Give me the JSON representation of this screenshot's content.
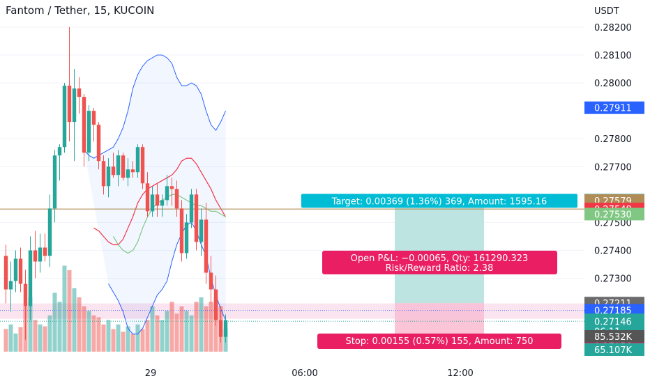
{
  "title": "Fantom / Tether, 15, KUCOIN",
  "currency": "USDT",
  "colors": {
    "up": "#26a69a",
    "down": "#ef5350",
    "bb_upper": "#2962ff",
    "bb_lower": "#2962ff",
    "bb_basis": "#ff6d00",
    "ma_red": "#f23645",
    "ma_green": "#81c784",
    "target_zone": "#b2dfdb",
    "stop_zone": "#f8bbd0",
    "target_label": "#00bcd4",
    "pnl_label": "#e91e63",
    "stop_label": "#e91e63",
    "hline": "#b08d57",
    "dotted": "#2962ff"
  },
  "time_axis": [
    "29",
    "06:00",
    "12:00"
  ],
  "chart_data": {
    "type": "candlestick",
    "ylim": [
      0.27012,
      0.28297
    ],
    "y_ticks": [
      "0.28200",
      "0.28100",
      "0.28000",
      "0.27800",
      "0.27700",
      "0.27500",
      "0.27400",
      "0.27300"
    ],
    "y_tick_values": [
      0.282,
      0.281,
      0.28,
      0.278,
      0.277,
      0.275,
      0.274,
      0.273
    ],
    "candles": [
      [
        0.2738,
        0.2742,
        0.2721,
        0.2726
      ],
      [
        0.2726,
        0.2736,
        0.2718,
        0.2729
      ],
      [
        0.2729,
        0.274,
        0.2725,
        0.2737
      ],
      [
        0.2737,
        0.2741,
        0.2725,
        0.2728
      ],
      [
        0.2728,
        0.2733,
        0.2708,
        0.272
      ],
      [
        0.272,
        0.2745,
        0.2715,
        0.274
      ],
      [
        0.274,
        0.2747,
        0.273,
        0.2736
      ],
      [
        0.2736,
        0.2746,
        0.2732,
        0.2741
      ],
      [
        0.2741,
        0.2746,
        0.2736,
        0.2738
      ],
      [
        0.2738,
        0.276,
        0.2734,
        0.2755
      ],
      [
        0.2755,
        0.2776,
        0.275,
        0.2774
      ],
      [
        0.2774,
        0.2778,
        0.2765,
        0.2777
      ],
      [
        0.2777,
        0.28,
        0.2775,
        0.2799
      ],
      [
        0.2799,
        0.282,
        0.2779,
        0.2786
      ],
      [
        0.2786,
        0.2805,
        0.2772,
        0.2798
      ],
      [
        0.2798,
        0.2802,
        0.2789,
        0.2795
      ],
      [
        0.2795,
        0.2796,
        0.277,
        0.2775
      ],
      [
        0.2775,
        0.2792,
        0.2772,
        0.279
      ],
      [
        0.279,
        0.2791,
        0.2779,
        0.2785
      ],
      [
        0.2785,
        0.2786,
        0.2769,
        0.2772
      ],
      [
        0.2772,
        0.2774,
        0.276,
        0.2763
      ],
      [
        0.2763,
        0.2773,
        0.2759,
        0.277
      ],
      [
        0.277,
        0.2775,
        0.2766,
        0.2767
      ],
      [
        0.2767,
        0.2776,
        0.2763,
        0.2774
      ],
      [
        0.2774,
        0.2775,
        0.2765,
        0.2766
      ],
      [
        0.2766,
        0.2773,
        0.2763,
        0.2769
      ],
      [
        0.2769,
        0.2772,
        0.2766,
        0.2768
      ],
      [
        0.2768,
        0.2778,
        0.2766,
        0.2777
      ],
      [
        0.2777,
        0.2778,
        0.2762,
        0.2764
      ],
      [
        0.2764,
        0.2768,
        0.2752,
        0.2754
      ],
      [
        0.2754,
        0.2763,
        0.2752,
        0.276
      ],
      [
        0.276,
        0.2764,
        0.2752,
        0.2756
      ],
      [
        0.2756,
        0.276,
        0.2752,
        0.2758
      ],
      [
        0.2758,
        0.2767,
        0.2756,
        0.2763
      ],
      [
        0.2763,
        0.2766,
        0.2756,
        0.2762
      ],
      [
        0.2762,
        0.2765,
        0.2752,
        0.2755
      ],
      [
        0.2755,
        0.2758,
        0.2736,
        0.2739
      ],
      [
        0.2739,
        0.2753,
        0.2737,
        0.275
      ],
      [
        0.275,
        0.2762,
        0.2748,
        0.276
      ],
      [
        0.276,
        0.2762,
        0.274,
        0.2743
      ],
      [
        0.2743,
        0.2755,
        0.2738,
        0.2751
      ],
      [
        0.2751,
        0.2757,
        0.2728,
        0.2732
      ],
      [
        0.2732,
        0.2738,
        0.2721,
        0.2726
      ],
      [
        0.2726,
        0.2731,
        0.2713,
        0.2715
      ],
      [
        0.2715,
        0.272,
        0.2707,
        0.2709
      ],
      [
        0.2709,
        0.2717,
        0.2707,
        0.2715
      ]
    ],
    "volume": [
      0.25,
      0.3,
      0.2,
      0.27,
      0.5,
      0.6,
      0.35,
      0.3,
      0.28,
      0.4,
      0.65,
      0.55,
      0.95,
      0.9,
      0.7,
      0.6,
      0.5,
      0.45,
      0.4,
      0.38,
      0.3,
      0.35,
      0.25,
      0.3,
      0.22,
      0.28,
      0.2,
      0.3,
      0.25,
      0.35,
      0.5,
      0.4,
      0.35,
      0.45,
      0.55,
      0.42,
      0.5,
      0.45,
      0.4,
      0.55,
      0.6,
      0.5,
      0.55,
      0.6,
      0.5,
      0.25
    ],
    "bb_upper": [
      0.2776,
      0.2774,
      0.2773,
      0.2774,
      0.2775,
      0.2776,
      0.2777,
      0.278,
      0.2784,
      0.279,
      0.2798,
      0.2803,
      0.2806,
      0.2808,
      0.2809,
      0.281,
      0.281,
      0.2809,
      0.2807,
      0.2802,
      0.2799,
      0.2799,
      0.28,
      0.2799,
      0.2796,
      0.279,
      0.2785,
      0.2783,
      0.2786,
      0.279
    ],
    "bb_basis": [
      0.2748,
      0.2747,
      0.2745,
      0.2743,
      0.2742,
      0.2742,
      0.2744,
      0.2748,
      0.2752,
      0.2757,
      0.276,
      0.2762,
      0.2763,
      0.2764,
      0.2765,
      0.2766,
      0.2767,
      0.2769,
      0.2772,
      0.2773,
      0.2773,
      0.2771,
      0.2768,
      0.2765,
      0.2762,
      0.2758,
      0.2755,
      0.2752
    ],
    "bb_lower": [
      0.2728,
      0.2725,
      0.2722,
      0.2718,
      0.2712,
      0.271,
      0.271,
      0.2712,
      0.2716,
      0.272,
      0.2724,
      0.2726,
      0.2729,
      0.2736,
      0.2742,
      0.2746,
      0.2749,
      0.275,
      0.2747,
      0.2742,
      0.2738,
      0.273,
      0.2724,
      0.2719,
      0.2715
    ],
    "ma_green": [
      0.2745,
      0.2742,
      0.274,
      0.2739,
      0.274,
      0.2743,
      0.2748,
      0.2752,
      0.2755,
      0.2757,
      0.2758,
      0.2759,
      0.276,
      0.276,
      0.2759,
      0.2758,
      0.2757,
      0.2756,
      0.2756,
      0.2755,
      0.2754,
      0.2754,
      0.2753,
      0.2752
    ],
    "hline": 0.27548,
    "price_badges": [
      {
        "text": "0.27911",
        "value": 0.27911,
        "bg": "#2962ff"
      },
      {
        "text": "0.27580",
        "value": 0.2758,
        "bg": "#00bcd4"
      },
      {
        "text": "0.27579",
        "value": 0.27579,
        "bg": "#b08d57"
      },
      {
        "text": "0.27548",
        "value": 0.27548,
        "bg": "#f23645"
      },
      {
        "text": "0.27530",
        "value": 0.2753,
        "bg": "#81c784"
      },
      {
        "text": "0.27211",
        "value": 0.27211,
        "bg": "#6b6b6b"
      },
      {
        "text": "0.27185",
        "value": 0.27185,
        "bg": "#2962ff"
      },
      {
        "text": "0.27056",
        "value": 0.27056,
        "bg": "#e91e63"
      }
    ],
    "current_price": {
      "price": "0.27146",
      "countdown": "06:11",
      "bg": "#26a69a"
    },
    "volume_badges": [
      {
        "text": "85.532K",
        "bg": "#555555"
      },
      {
        "text": "65.107K",
        "bg": "#26a69a"
      }
    ],
    "position": {
      "target_label": "Target: 0.00369 (1.36%) 369, Amount: 1595.16",
      "pnl_label_1": "Open P&L: −0.00065, Qty: 161290.323",
      "pnl_label_2": "Risk/Reward Ratio: 2.38",
      "stop_label": "Stop: 0.00155 (0.57%) 155, Amount: 750",
      "target_price": 0.2758,
      "entry_price": 0.27211,
      "stop_price": 0.27056
    }
  }
}
